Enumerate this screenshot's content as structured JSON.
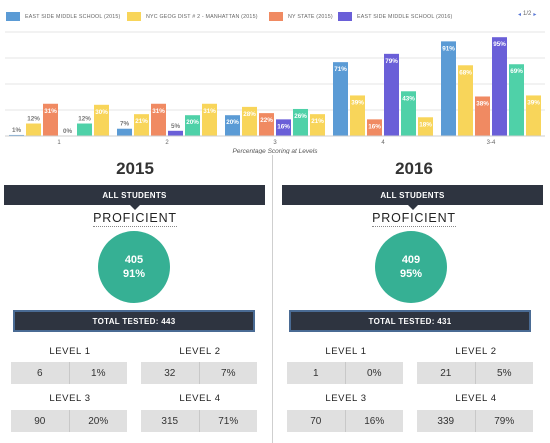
{
  "chart_data": {
    "type": "bar",
    "categories": [
      "1",
      "2",
      "3",
      "4",
      "3-4"
    ],
    "xlabel": "Percentage Scoring at Levels",
    "ylim": [
      0,
      100
    ],
    "legend_position": "top",
    "series": [
      {
        "name": "EAST SIDE MIDDLE SCHOOL (2015)",
        "color": "#5b9bd5",
        "values": [
          1,
          7,
          20,
          71,
          91
        ],
        "labels": [
          "1%",
          "7%",
          "20%",
          "71%",
          "91%"
        ]
      },
      {
        "name": "NYC GEOG DIST # 2 - MANHATTAN (2015)",
        "color": "#f8d55a",
        "values": [
          12,
          21,
          28,
          39,
          68
        ],
        "labels": [
          "12%",
          "21%",
          "28%",
          "39%",
          "68%"
        ]
      },
      {
        "name": "NY STATE (2015)",
        "color": "#f08a62",
        "values": [
          31,
          31,
          22,
          16,
          38
        ],
        "labels": [
          "31%",
          "31%",
          "22%",
          "16%",
          "38%"
        ]
      },
      {
        "name": "EAST SIDE MIDDLE SCHOOL (2016)",
        "color": "#6a5fd8",
        "values": [
          0,
          5,
          16,
          79,
          95
        ],
        "labels": [
          "0%",
          "5%",
          "16%",
          "79%",
          "95%"
        ]
      },
      {
        "name": "",
        "color": "#4fd1a8",
        "values": [
          12,
          20,
          26,
          43,
          69
        ],
        "labels": [
          "12%",
          "20%",
          "26%",
          "43%",
          "69%"
        ]
      },
      {
        "name": "",
        "color": "#f8d55a",
        "values": [
          30,
          31,
          21,
          18,
          39
        ],
        "labels": [
          "30%",
          "31%",
          "21%",
          "18%",
          "39%"
        ]
      }
    ]
  },
  "pager": {
    "prev": "◂",
    "text": "1/2",
    "next": "▸"
  },
  "left": {
    "year": "2015",
    "banner": "ALL STUDENTS",
    "proficient_label": "PROFICIENT",
    "count": "405",
    "percent": "91%",
    "tested": "TOTAL TESTED: 443",
    "levels": [
      {
        "title": "LEVEL 1",
        "count": "6",
        "pct": "1%"
      },
      {
        "title": "LEVEL 2",
        "count": "32",
        "pct": "7%"
      },
      {
        "title": "LEVEL 3",
        "count": "90",
        "pct": "20%"
      },
      {
        "title": "LEVEL 4",
        "count": "315",
        "pct": "71%"
      }
    ]
  },
  "right": {
    "year": "2016",
    "banner": "ALL STUDENTS",
    "proficient_label": "PROFICIENT",
    "count": "409",
    "percent": "95%",
    "tested": "TOTAL TESTED: 431",
    "levels": [
      {
        "title": "LEVEL 1",
        "count": "1",
        "pct": "0%"
      },
      {
        "title": "LEVEL 2",
        "count": "21",
        "pct": "5%"
      },
      {
        "title": "LEVEL 3",
        "count": "70",
        "pct": "16%"
      },
      {
        "title": "LEVEL 4",
        "count": "339",
        "pct": "79%"
      }
    ]
  }
}
